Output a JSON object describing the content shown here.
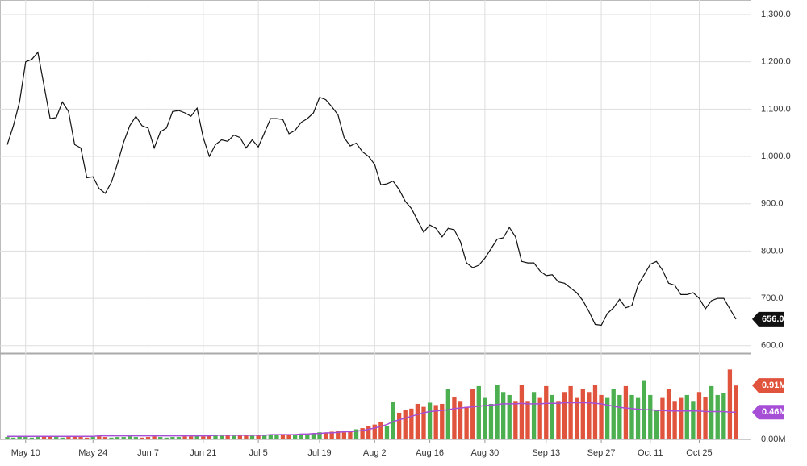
{
  "chart_data": [
    {
      "type": "line",
      "color": "#111111",
      "categories": [
        null,
        null,
        null,
        "May 10",
        null,
        null,
        null,
        null,
        null,
        null,
        null,
        null,
        null,
        null,
        "May 24",
        null,
        null,
        null,
        null,
        null,
        null,
        null,
        null,
        "Jun 7",
        null,
        null,
        null,
        null,
        null,
        null,
        null,
        null,
        "Jun 21",
        null,
        null,
        null,
        null,
        null,
        null,
        null,
        null,
        "Jul 5",
        null,
        null,
        null,
        null,
        null,
        null,
        null,
        null,
        null,
        "Jul 19",
        null,
        null,
        null,
        null,
        null,
        null,
        null,
        null,
        "Aug 2",
        null,
        null,
        null,
        null,
        null,
        null,
        null,
        null,
        "Aug 16",
        null,
        null,
        null,
        null,
        null,
        null,
        null,
        null,
        "Aug 30",
        null,
        null,
        null,
        null,
        null,
        null,
        null,
        null,
        null,
        "Sep 13",
        null,
        null,
        null,
        null,
        null,
        null,
        null,
        null,
        "Sep 27",
        null,
        null,
        null,
        null,
        null,
        null,
        null,
        "Oct 11",
        null,
        null,
        null,
        null,
        null,
        null,
        null,
        "Oct 25",
        null,
        null,
        null,
        null,
        null,
        null
      ],
      "values": [
        1025,
        1065,
        1115,
        1200,
        1205,
        1220,
        1150,
        1080,
        1082,
        1115,
        1095,
        1025,
        1018,
        955,
        957,
        932,
        922,
        945,
        985,
        1030,
        1065,
        1085,
        1065,
        1060,
        1018,
        1052,
        1060,
        1095,
        1097,
        1092,
        1085,
        1102,
        1040,
        1000,
        1025,
        1035,
        1032,
        1045,
        1040,
        1018,
        1035,
        1020,
        1050,
        1080,
        1080,
        1078,
        1048,
        1055,
        1072,
        1080,
        1092,
        1125,
        1120,
        1105,
        1088,
        1040,
        1022,
        1028,
        1010,
        1000,
        983,
        940,
        942,
        948,
        930,
        905,
        890,
        865,
        840,
        855,
        848,
        830,
        848,
        845,
        820,
        775,
        765,
        770,
        785,
        805,
        825,
        828,
        850,
        830,
        778,
        775,
        775,
        758,
        748,
        750,
        735,
        732,
        722,
        712,
        695,
        672,
        645,
        643,
        668,
        680,
        698,
        680,
        685,
        728,
        750,
        772,
        778,
        760,
        732,
        728,
        708,
        708,
        712,
        700,
        678,
        695,
        700,
        700,
        678,
        656
      ],
      "last_value_label": "656.0",
      "ylim": [
        586,
        1317
      ],
      "yticks": [
        {
          "value": 600,
          "label": "600.0"
        },
        {
          "value": 700,
          "label": "700.0"
        },
        {
          "value": 800,
          "label": "800.0"
        },
        {
          "value": 900,
          "label": "900.0"
        },
        {
          "value": 1000,
          "label": "1,000.0"
        },
        {
          "value": 1100,
          "label": "1,100.0"
        },
        {
          "value": 1200,
          "label": "1,200.0"
        },
        {
          "value": 1300,
          "label": "1,300.0"
        }
      ],
      "grid": true
    },
    {
      "type": "bar",
      "up_color": "#4caf50",
      "down_color": "#e0533d",
      "series": [
        {
          "values": [
            0.04,
            0.03,
            0.05,
            0.04,
            0.03,
            0.04,
            0.06,
            0.05,
            0.04,
            0.03,
            0.04,
            0.05,
            0.04,
            0.03,
            0.04,
            0.05,
            0.04,
            0.03,
            0.04,
            0.04,
            0.05,
            0.04,
            0.03,
            0.04,
            0.05,
            0.04,
            0.03,
            0.04,
            0.04,
            0.05,
            0.05,
            0.06,
            0.05,
            0.06,
            0.07,
            0.06,
            0.07,
            0.06,
            0.08,
            0.07,
            0.06,
            0.07,
            0.08,
            0.07,
            0.08,
            0.09,
            0.08,
            0.07,
            0.08,
            0.09,
            0.1,
            0.12,
            0.11,
            0.13,
            0.14,
            0.12,
            0.15,
            0.17,
            0.19,
            0.22,
            0.25,
            0.3,
            0.22,
            0.63,
            0.45,
            0.5,
            0.52,
            0.6,
            0.55,
            0.62,
            0.58,
            0.6,
            0.85,
            0.72,
            0.65,
            0.55,
            0.85,
            0.9,
            0.7,
            0.6,
            0.92,
            0.8,
            0.75,
            0.65,
            0.92,
            0.65,
            0.8,
            0.7,
            0.9,
            0.75,
            0.65,
            0.8,
            0.9,
            0.7,
            0.85,
            0.8,
            0.92,
            0.75,
            0.7,
            0.85,
            0.75,
            0.9,
            0.75,
            0.7,
            1.0,
            0.75,
            0.5,
            0.7,
            0.85,
            0.65,
            0.7,
            0.75,
            0.65,
            0.8,
            0.72,
            0.9,
            0.75,
            0.78,
            1.18,
            0.91
          ],
          "last_value_label": "0.91M",
          "badge_color": "#e0533d"
        },
        {
          "type": "line",
          "color": "#a64fd6",
          "values": [
            0.05,
            0.05,
            0.05,
            0.05,
            0.05,
            0.05,
            0.05,
            0.05,
            0.05,
            0.05,
            0.05,
            0.05,
            0.05,
            0.05,
            0.05,
            0.06,
            0.06,
            0.06,
            0.06,
            0.06,
            0.06,
            0.06,
            0.06,
            0.06,
            0.06,
            0.06,
            0.06,
            0.06,
            0.06,
            0.06,
            0.06,
            0.06,
            0.06,
            0.06,
            0.07,
            0.07,
            0.07,
            0.07,
            0.07,
            0.07,
            0.07,
            0.07,
            0.07,
            0.08,
            0.08,
            0.08,
            0.08,
            0.08,
            0.09,
            0.09,
            0.1,
            0.1,
            0.11,
            0.11,
            0.12,
            0.13,
            0.13,
            0.14,
            0.15,
            0.17,
            0.19,
            0.22,
            0.25,
            0.3,
            0.33,
            0.36,
            0.39,
            0.42,
            0.45,
            0.47,
            0.48,
            0.49,
            0.5,
            0.52,
            0.53,
            0.54,
            0.55,
            0.56,
            0.57,
            0.58,
            0.59,
            0.6,
            0.6,
            0.6,
            0.61,
            0.6,
            0.6,
            0.6,
            0.61,
            0.61,
            0.61,
            0.62,
            0.62,
            0.62,
            0.62,
            0.62,
            0.61,
            0.6,
            0.58,
            0.56,
            0.54,
            0.53,
            0.52,
            0.51,
            0.5,
            0.5,
            0.49,
            0.49,
            0.48,
            0.48,
            0.48,
            0.48,
            0.48,
            0.48,
            0.47,
            0.47,
            0.47,
            0.47,
            0.46,
            0.46
          ],
          "last_value_label": "0.46M"
        }
      ],
      "ylim": [
        0,
        1.43
      ],
      "yticks": [
        {
          "value": 0,
          "label": "0.00M"
        }
      ]
    }
  ]
}
